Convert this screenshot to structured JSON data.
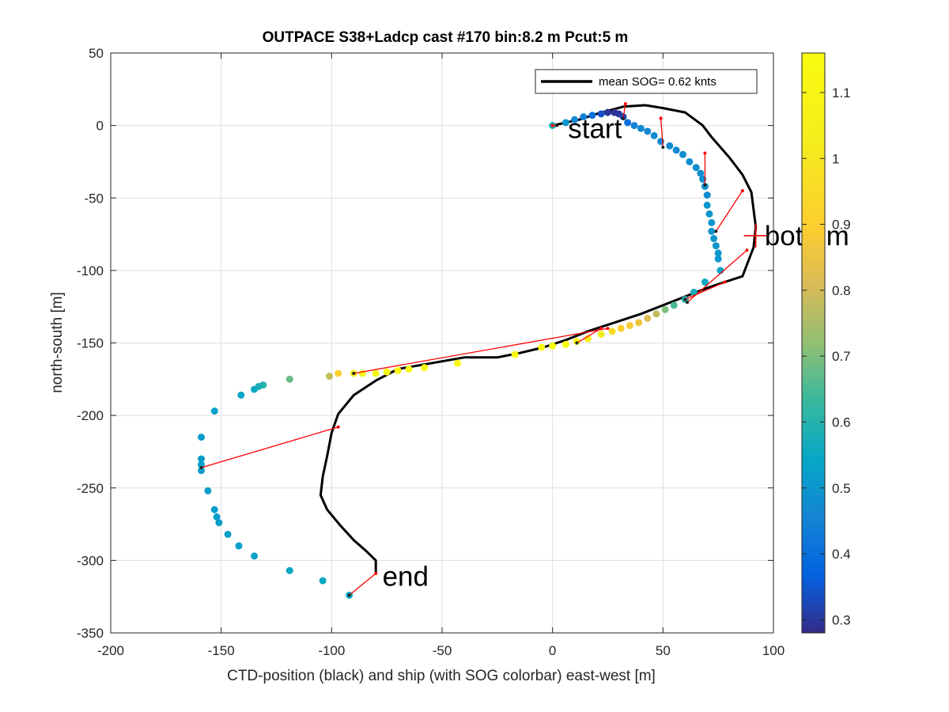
{
  "chart_data": {
    "type": "scatter",
    "title": "OUTPACE S38+Ladcp cast #170 bin:8.2 m  Pcut:5 m",
    "xlabel": "CTD-position (black) and ship (with SOG colorbar) east-west [m]",
    "ylabel": "north-south [m]",
    "xlim": [
      -200,
      100
    ],
    "ylim": [
      -350,
      50
    ],
    "xticks": [
      -200,
      -150,
      -100,
      -50,
      0,
      50,
      100
    ],
    "yticks": [
      50,
      0,
      -50,
      -100,
      -150,
      -200,
      -250,
      -300,
      -350
    ],
    "grid": true,
    "legend": {
      "placement": "top-right",
      "label": "mean SOG=  0.62 knts"
    },
    "colorbar": {
      "range": [
        0.28,
        1.16
      ],
      "ticks": [
        0.3,
        0.4,
        0.5,
        0.6,
        0.7,
        0.8,
        0.9,
        1,
        1.1
      ],
      "colormap": "parula"
    },
    "annotations": [
      {
        "text": "start",
        "x": 7,
        "y": -2
      },
      {
        "text": "bottom",
        "x": 96,
        "y": -76
      },
      {
        "text": "end",
        "x": -77,
        "y": -311
      }
    ],
    "bottom_marker": {
      "x": 92,
      "y": -76
    },
    "ctd_track": {
      "name": "CTD-position (black)",
      "color": "#000000",
      "points": [
        [
          0,
          0
        ],
        [
          12,
          4
        ],
        [
          20,
          8
        ],
        [
          32,
          13
        ],
        [
          42,
          14
        ],
        [
          50,
          12
        ],
        [
          60,
          9
        ],
        [
          68,
          0
        ],
        [
          72,
          -8
        ],
        [
          80,
          -22
        ],
        [
          86,
          -34
        ],
        [
          90,
          -46
        ],
        [
          91,
          -58
        ],
        [
          92,
          -70
        ],
        [
          91,
          -84
        ],
        [
          88,
          -96
        ],
        [
          86,
          -104
        ],
        [
          78,
          -108
        ],
        [
          70,
          -112
        ],
        [
          60,
          -118
        ],
        [
          50,
          -124
        ],
        [
          40,
          -130
        ],
        [
          28,
          -136
        ],
        [
          16,
          -142
        ],
        [
          6,
          -148
        ],
        [
          -4,
          -153
        ],
        [
          -15,
          -157
        ],
        [
          -25,
          -160
        ],
        [
          -40,
          -160
        ],
        [
          -55,
          -164
        ],
        [
          -70,
          -168
        ],
        [
          -80,
          -176
        ],
        [
          -90,
          -186
        ],
        [
          -97,
          -199
        ],
        [
          -100,
          -212
        ],
        [
          -102,
          -228
        ],
        [
          -104,
          -242
        ],
        [
          -105,
          -255
        ],
        [
          -102,
          -265
        ],
        [
          -96,
          -276
        ],
        [
          -90,
          -286
        ],
        [
          -84,
          -294
        ],
        [
          -80,
          -300
        ],
        [
          -80,
          -309
        ]
      ]
    },
    "ship_track": {
      "name": "ship (with SOG colorbar)",
      "points": [
        {
          "x": 0,
          "y": 0,
          "sog": 0.58
        },
        {
          "x": 6,
          "y": 2,
          "sog": 0.5
        },
        {
          "x": 10,
          "y": 4,
          "sog": 0.46
        },
        {
          "x": 14,
          "y": 6,
          "sog": 0.45
        },
        {
          "x": 18,
          "y": 7,
          "sog": 0.4
        },
        {
          "x": 22,
          "y": 8,
          "sog": 0.34
        },
        {
          "x": 25,
          "y": 9,
          "sog": 0.3
        },
        {
          "x": 28,
          "y": 9,
          "sog": 0.29
        },
        {
          "x": 30,
          "y": 8,
          "sog": 0.3
        },
        {
          "x": 32,
          "y": 6,
          "sog": 0.32
        },
        {
          "x": 34,
          "y": 2,
          "sog": 0.4
        },
        {
          "x": 37,
          "y": 0,
          "sog": 0.45
        },
        {
          "x": 40,
          "y": -2,
          "sog": 0.47
        },
        {
          "x": 43,
          "y": -4,
          "sog": 0.46
        },
        {
          "x": 46,
          "y": -7,
          "sog": 0.47
        },
        {
          "x": 49,
          "y": -11,
          "sog": 0.47
        },
        {
          "x": 53,
          "y": -14,
          "sog": 0.47
        },
        {
          "x": 56,
          "y": -17,
          "sog": 0.47
        },
        {
          "x": 59,
          "y": -20,
          "sog": 0.48
        },
        {
          "x": 62,
          "y": -25,
          "sog": 0.48
        },
        {
          "x": 65,
          "y": -29,
          "sog": 0.48
        },
        {
          "x": 67,
          "y": -33,
          "sog": 0.48
        },
        {
          "x": 68,
          "y": -37,
          "sog": 0.48
        },
        {
          "x": 69,
          "y": -42,
          "sog": 0.48
        },
        {
          "x": 70,
          "y": -48,
          "sog": 0.48
        },
        {
          "x": 70,
          "y": -55,
          "sog": 0.5
        },
        {
          "x": 71,
          "y": -61,
          "sog": 0.5
        },
        {
          "x": 72,
          "y": -67,
          "sog": 0.5
        },
        {
          "x": 72,
          "y": -73,
          "sog": 0.5
        },
        {
          "x": 73,
          "y": -78,
          "sog": 0.5
        },
        {
          "x": 74,
          "y": -83,
          "sog": 0.5
        },
        {
          "x": 75,
          "y": -88,
          "sog": 0.5
        },
        {
          "x": 75,
          "y": -92,
          "sog": 0.5
        },
        {
          "x": 76,
          "y": -100,
          "sog": 0.54
        },
        {
          "x": 69,
          "y": -108,
          "sog": 0.56
        },
        {
          "x": 64,
          "y": -115,
          "sog": 0.58
        },
        {
          "x": 60,
          "y": -120,
          "sog": 0.6
        },
        {
          "x": 55,
          "y": -124,
          "sog": 0.65
        },
        {
          "x": 51,
          "y": -127,
          "sog": 0.7
        },
        {
          "x": 47,
          "y": -130,
          "sog": 0.78
        },
        {
          "x": 43,
          "y": -133,
          "sog": 0.82
        },
        {
          "x": 39,
          "y": -136,
          "sog": 0.86
        },
        {
          "x": 35,
          "y": -138,
          "sog": 0.88
        },
        {
          "x": 31,
          "y": -140,
          "sog": 0.9
        },
        {
          "x": 27,
          "y": -142,
          "sog": 0.96
        },
        {
          "x": 22,
          "y": -144,
          "sog": 1.02
        },
        {
          "x": 16,
          "y": -147,
          "sog": 1.07
        },
        {
          "x": 11,
          "y": -149,
          "sog": 1.11
        },
        {
          "x": 6,
          "y": -151,
          "sog": 1.13
        },
        {
          "x": 0,
          "y": -152,
          "sog": 1.15
        },
        {
          "x": -5,
          "y": -153,
          "sog": 1.15
        },
        {
          "x": -17,
          "y": -158,
          "sog": 1.15
        },
        {
          "x": -43,
          "y": -164,
          "sog": 1.12
        },
        {
          "x": -58,
          "y": -167,
          "sog": 1.13
        },
        {
          "x": -65,
          "y": -168,
          "sog": 1.13
        },
        {
          "x": -70,
          "y": -169,
          "sog": 1.13
        },
        {
          "x": -75,
          "y": -170,
          "sog": 1.13
        },
        {
          "x": -80,
          "y": -171,
          "sog": 1.12
        },
        {
          "x": -86,
          "y": -171,
          "sog": 1.1
        },
        {
          "x": -90,
          "y": -171,
          "sog": 1.02
        },
        {
          "x": -97,
          "y": -171,
          "sog": 0.9
        },
        {
          "x": -101,
          "y": -173,
          "sog": 0.78
        },
        {
          "x": -119,
          "y": -175,
          "sog": 0.68
        },
        {
          "x": -131,
          "y": -179,
          "sog": 0.6
        },
        {
          "x": -133,
          "y": -180,
          "sog": 0.58
        },
        {
          "x": -135,
          "y": -182,
          "sog": 0.56
        },
        {
          "x": -141,
          "y": -186,
          "sog": 0.54
        },
        {
          "x": -153,
          "y": -197,
          "sog": 0.52
        },
        {
          "x": -159,
          "y": -215,
          "sog": 0.52
        },
        {
          "x": -159,
          "y": -230,
          "sog": 0.52
        },
        {
          "x": -159,
          "y": -234,
          "sog": 0.52
        },
        {
          "x": -159,
          "y": -238,
          "sog": 0.52
        },
        {
          "x": -156,
          "y": -252,
          "sog": 0.52
        },
        {
          "x": -153,
          "y": -265,
          "sog": 0.52
        },
        {
          "x": -152,
          "y": -270,
          "sog": 0.52
        },
        {
          "x": -151,
          "y": -274,
          "sog": 0.52
        },
        {
          "x": -147,
          "y": -282,
          "sog": 0.52
        },
        {
          "x": -142,
          "y": -290,
          "sog": 0.52
        },
        {
          "x": -135,
          "y": -297,
          "sog": 0.52
        },
        {
          "x": -119,
          "y": -307,
          "sog": 0.55
        },
        {
          "x": -104,
          "y": -314,
          "sog": 0.55
        },
        {
          "x": -92,
          "y": -324,
          "sog": 0.55
        }
      ]
    },
    "connectors": {
      "color": "#ff0000",
      "pairs": [
        [
          [
            0,
            0
          ],
          [
            2,
            0
          ]
        ],
        [
          [
            33,
            15
          ],
          [
            32,
            5
          ]
        ],
        [
          [
            49,
            5
          ],
          [
            50,
            -15
          ]
        ],
        [
          [
            69,
            -19
          ],
          [
            69,
            -41
          ]
        ],
        [
          [
            86,
            -45
          ],
          [
            74,
            -73
          ]
        ],
        [
          [
            88,
            -86
          ],
          [
            61,
            -122
          ]
        ],
        [
          [
            78,
            -108
          ],
          [
            60,
            -120
          ]
        ],
        [
          [
            22,
            -140
          ],
          [
            11,
            -150
          ]
        ],
        [
          [
            25,
            -140
          ],
          [
            -90,
            -171
          ]
        ],
        [
          [
            -97,
            -208
          ],
          [
            -159,
            -236
          ]
        ],
        [
          [
            -80,
            -309
          ],
          [
            -92,
            -324
          ]
        ]
      ]
    }
  }
}
